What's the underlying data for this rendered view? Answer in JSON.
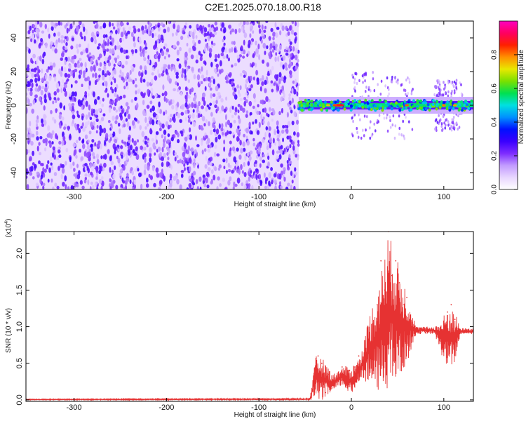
{
  "figure_title": "C2E1.2025.070.18.00.R18",
  "colorbar": {
    "label": "Normalized spectral amplitude",
    "ticks": [
      "0.0",
      "0.2",
      "0.4",
      "0.6",
      "0.8"
    ],
    "tick_values": [
      0.0,
      0.2,
      0.4,
      0.6,
      0.8
    ],
    "range": [
      0,
      1
    ],
    "colors": [
      "#ffffff",
      "#e8d6ff",
      "#c29bff",
      "#7d2cff",
      "#3a00ff",
      "#0010ff",
      "#0090ff",
      "#00e0e0",
      "#00e050",
      "#7ae000",
      "#e8e800",
      "#ff9000",
      "#ff2000",
      "#ff0060",
      "#ff00c0"
    ]
  },
  "chart_data": [
    {
      "type": "heatmap",
      "title": "",
      "xlabel": "Height of straight line (km)",
      "ylabel": "Frequency (Hz)",
      "xlim": [
        -352,
        132
      ],
      "ylim": [
        -50,
        50
      ],
      "xticks": [
        -300,
        -200,
        -100,
        0,
        100
      ],
      "xtick_labels": [
        "-300",
        "-200",
        "-100",
        "0",
        "100"
      ],
      "yticks": [
        -40,
        -20,
        0,
        20,
        40
      ],
      "ytick_labels": [
        "-40",
        "-20",
        "0",
        "20",
        "40"
      ],
      "regions": [
        {
          "x_range": [
            -352,
            -57
          ],
          "freq_range": [
            -50,
            50
          ],
          "amplitude": 0.15
        },
        {
          "x_range": [
            -57,
            132
          ],
          "freq_range": [
            -5,
            5
          ],
          "amplitude": 0.4
        },
        {
          "x_range": [
            -20,
            -10
          ],
          "freq_center": 0,
          "amplitude": 0.9
        },
        {
          "x_range": [
            0,
            70
          ],
          "freq_range": [
            -20,
            20
          ],
          "amplitude": 0.3
        },
        {
          "x_range": [
            90,
            120
          ],
          "freq_range": [
            -15,
            15
          ],
          "amplitude": 0.3
        }
      ]
    },
    {
      "type": "line",
      "title": "",
      "xlabel": "Height of straight line (km)",
      "ylabel": "SNR (10 * v/v)",
      "y_multiplier": "(x10",
      "y_multiplier_exp": "4",
      "y_multiplier_close": ")",
      "xlim": [
        -352,
        132
      ],
      "ylim": [
        -0.02,
        2.3
      ],
      "xticks": [
        -300,
        -200,
        -100,
        0,
        100
      ],
      "xtick_labels": [
        "-300",
        "-200",
        "-100",
        "0",
        "100"
      ],
      "yticks": [
        0.0,
        0.5,
        1.0,
        1.5,
        2.0
      ],
      "ytick_labels": [
        "0.0",
        "0.5",
        "1.0",
        "1.5",
        "2.0"
      ],
      "color": "#e63232",
      "x": [
        -352,
        -200,
        -100,
        -45,
        -40,
        -36,
        -32,
        -28,
        -25,
        -22,
        -18,
        -14,
        -10,
        -6,
        -2,
        0,
        4,
        8,
        12,
        16,
        20,
        24,
        28,
        32,
        36,
        40,
        44,
        48,
        52,
        56,
        60,
        64,
        68,
        72,
        80,
        90,
        96,
        100,
        104,
        108,
        112,
        114,
        120,
        132
      ],
      "y": [
        0.0,
        0.0,
        0.0,
        0.02,
        0.35,
        0.6,
        0.5,
        0.1,
        0.35,
        0.15,
        0.2,
        0.3,
        0.45,
        0.45,
        0.4,
        0.15,
        0.45,
        0.6,
        0.55,
        0.6,
        0.8,
        1.0,
        1.3,
        1.9,
        1.5,
        2.3,
        1.7,
        1.9,
        1.6,
        1.3,
        1.4,
        1.05,
        0.95,
        0.95,
        0.92,
        0.95,
        0.9,
        1.0,
        1.2,
        1.3,
        1.1,
        0.95,
        0.95,
        0.95
      ],
      "band_x": [
        -352,
        -45,
        -38,
        -30,
        -20,
        -10,
        0,
        10,
        20,
        30,
        40,
        50,
        60,
        70,
        90,
        98,
        105,
        112,
        118,
        132
      ],
      "band_low": [
        0.0,
        0.0,
        0.0,
        0.0,
        0.1,
        0.2,
        0.05,
        0.3,
        0.2,
        0.1,
        0.15,
        0.2,
        0.5,
        0.9,
        0.9,
        0.6,
        0.4,
        0.5,
        0.9,
        0.9
      ],
      "band_high": [
        0.01,
        0.02,
        0.62,
        0.55,
        0.35,
        0.45,
        0.45,
        0.6,
        1.2,
        1.6,
        2.3,
        1.9,
        1.5,
        1.0,
        1.0,
        1.1,
        1.3,
        1.2,
        0.98,
        0.98
      ]
    }
  ]
}
